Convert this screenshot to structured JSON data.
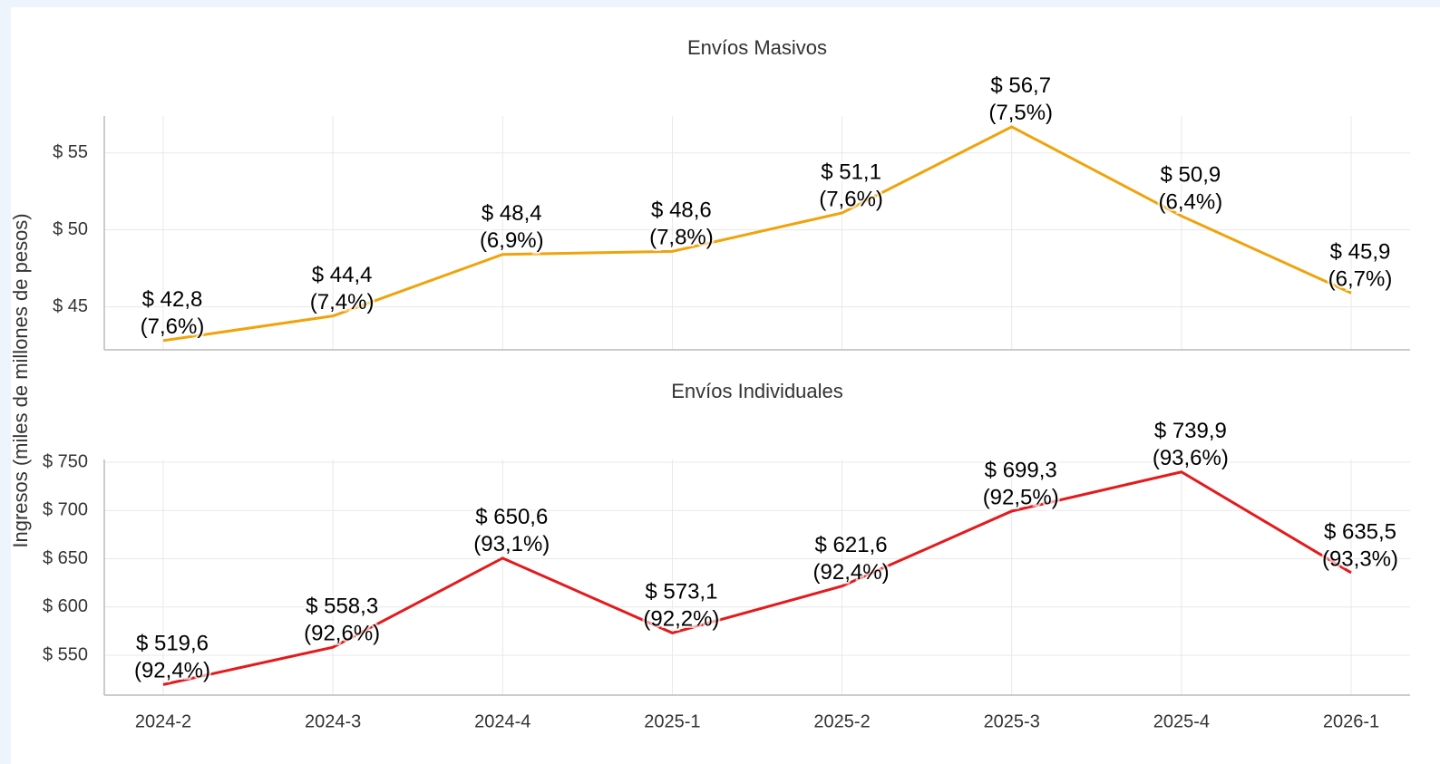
{
  "ylabel": "Ingresos (miles de millones de pesos)",
  "chart_data": [
    {
      "type": "line",
      "title": "Envíos Masivos",
      "categories": [
        "2024-2",
        "2024-3",
        "2024-4",
        "2025-1",
        "2025-2",
        "2025-3",
        "2025-4",
        "2026-1"
      ],
      "series": [
        {
          "name": "Envíos Masivos",
          "color": "#f0a30a",
          "values": [
            42.8,
            44.4,
            48.4,
            48.6,
            51.1,
            56.7,
            50.9,
            45.9
          ],
          "value_labels": [
            "$ 42,8",
            "$ 44,4",
            "$ 48,4",
            "$ 48,6",
            "$ 51,1",
            "$ 56,7",
            "$ 50,9",
            "$ 45,9"
          ],
          "share_labels": [
            "(7,6%)",
            "(7,4%)",
            "(6,9%)",
            "(7,8%)",
            "(7,6%)",
            "(7,5%)",
            "(6,4%)",
            "(6,7%)"
          ]
        }
      ],
      "ylim": [
        42.2,
        57.4
      ],
      "yticks": [
        {
          "value": 45,
          "label": "$ 45"
        },
        {
          "value": 50,
          "label": "$ 50"
        },
        {
          "value": 55,
          "label": "$ 55"
        }
      ],
      "grid": true
    },
    {
      "type": "line",
      "title": "Envíos Individuales",
      "categories": [
        "2024-2",
        "2024-3",
        "2024-4",
        "2025-1",
        "2025-2",
        "2025-3",
        "2025-4",
        "2026-1"
      ],
      "series": [
        {
          "name": "Envíos Individuales",
          "color": "#e41a1c",
          "values": [
            519.6,
            558.3,
            650.6,
            573.1,
            621.6,
            699.3,
            739.9,
            635.5
          ],
          "value_labels": [
            "$ 519,6",
            "$ 558,3",
            "$ 650,6",
            "$ 573,1",
            "$ 621,6",
            "$ 699,3",
            "$ 739,9",
            "$ 635,5"
          ],
          "share_labels": [
            "(92,4%)",
            "(92,6%)",
            "(93,1%)",
            "(92,2%)",
            "(92,4%)",
            "(92,5%)",
            "(93,6%)",
            "(93,3%)"
          ]
        }
      ],
      "ylim": [
        508.7,
        752.8
      ],
      "yticks": [
        {
          "value": 550,
          "label": "$ 550"
        },
        {
          "value": 600,
          "label": "$ 600"
        },
        {
          "value": 650,
          "label": "$ 650"
        },
        {
          "value": 700,
          "label": "$ 700"
        },
        {
          "value": 750,
          "label": "$ 750"
        }
      ],
      "grid": true
    }
  ]
}
